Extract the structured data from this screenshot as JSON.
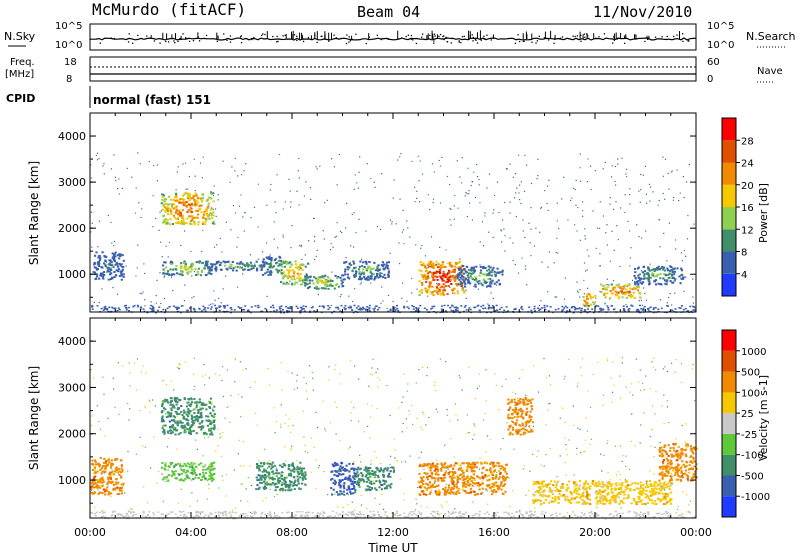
{
  "header": {
    "station": "McMurdo (fitACF)",
    "beam": "Beam 04",
    "date": "11/Nov/2010"
  },
  "top_panels": {
    "nsky_label": "N.Sky",
    "nsky_ticks": [
      "10^5",
      "10^0"
    ],
    "nsearch_label": "N.Search",
    "nsearch_ticks": [
      "10^5",
      "10^0"
    ],
    "freq_label_1": "Freq.",
    "freq_label_2": "[MHz]",
    "freq_ticks": [
      "18",
      "8"
    ],
    "nave_label": "Nave",
    "nave_ticks": [
      "60",
      "0"
    ],
    "cpid_label": "CPID",
    "cpid_value": "normal (fast) 151"
  },
  "chart_data": [
    {
      "type": "heatmap",
      "name": "power",
      "ylabel": "Slant Range [km]",
      "ylim": [
        180,
        4500
      ],
      "yticks": [
        1000,
        2000,
        3000,
        4000
      ],
      "colorbar": {
        "label": "Power [dB]",
        "ticks": [
          "4",
          "8",
          "12",
          "16",
          "20",
          "24",
          "28"
        ],
        "colors": [
          "#1f3bff",
          "#3b5fb0",
          "#3f8f6a",
          "#8fd14f",
          "#f6c800",
          "#f08a00",
          "#e05000",
          "#ff0000"
        ]
      },
      "blobs": [
        [
          0.1,
          1.3,
          900,
          1500,
          2
        ],
        [
          2.8,
          4.9,
          2100,
          2800,
          6
        ],
        [
          2.8,
          4.8,
          1000,
          1300,
          4
        ],
        [
          4.5,
          7.0,
          1100,
          1300,
          3
        ],
        [
          6.8,
          7.6,
          1000,
          1400,
          3
        ],
        [
          7.5,
          8.6,
          800,
          1300,
          5
        ],
        [
          8.4,
          10.0,
          700,
          1000,
          4
        ],
        [
          10.0,
          11.8,
          900,
          1300,
          3
        ],
        [
          13.0,
          14.8,
          550,
          1300,
          7
        ],
        [
          14.5,
          16.3,
          750,
          1200,
          3
        ],
        [
          19.5,
          20.0,
          300,
          600,
          6
        ],
        [
          20.2,
          21.8,
          500,
          800,
          6
        ],
        [
          21.5,
          23.5,
          800,
          1200,
          3
        ]
      ]
    },
    {
      "type": "heatmap",
      "name": "velocity",
      "xlabel": "Time UT",
      "ylabel": "Slant Range [km]",
      "ylim": [
        180,
        4500
      ],
      "yticks": [
        1000,
        2000,
        3000,
        4000
      ],
      "xticks": [
        "00:00",
        "04:00",
        "08:00",
        "12:00",
        "16:00",
        "20:00",
        "00:00"
      ],
      "xrange_hours": [
        0,
        24
      ],
      "colorbar": {
        "label": "Velocity [m s-1]",
        "ticks": [
          "1000",
          "500",
          "100",
          "25",
          "-25",
          "-100",
          "-500",
          "-1000"
        ],
        "colors": [
          "#1f3bff",
          "#3b5fb0",
          "#3f8f6a",
          "#5cc83a",
          "#c8c8c8",
          "#f6c800",
          "#f08a00",
          "#e05000",
          "#ff0000"
        ]
      },
      "blobs": [
        [
          0.0,
          1.3,
          700,
          1500,
          6
        ],
        [
          2.8,
          4.9,
          2000,
          2800,
          2
        ],
        [
          2.8,
          4.9,
          1000,
          1400,
          3
        ],
        [
          6.5,
          8.5,
          800,
          1400,
          2
        ],
        [
          9.5,
          10.5,
          700,
          1400,
          1
        ],
        [
          10.5,
          12.0,
          800,
          1300,
          2
        ],
        [
          13.0,
          16.5,
          700,
          1400,
          6
        ],
        [
          16.5,
          17.5,
          2000,
          2800,
          6
        ],
        [
          17.5,
          23.0,
          500,
          1000,
          5
        ],
        [
          22.5,
          24.0,
          1000,
          1800,
          6
        ]
      ]
    }
  ],
  "colors": {
    "frame": "#000000",
    "background": "#ffffff"
  }
}
